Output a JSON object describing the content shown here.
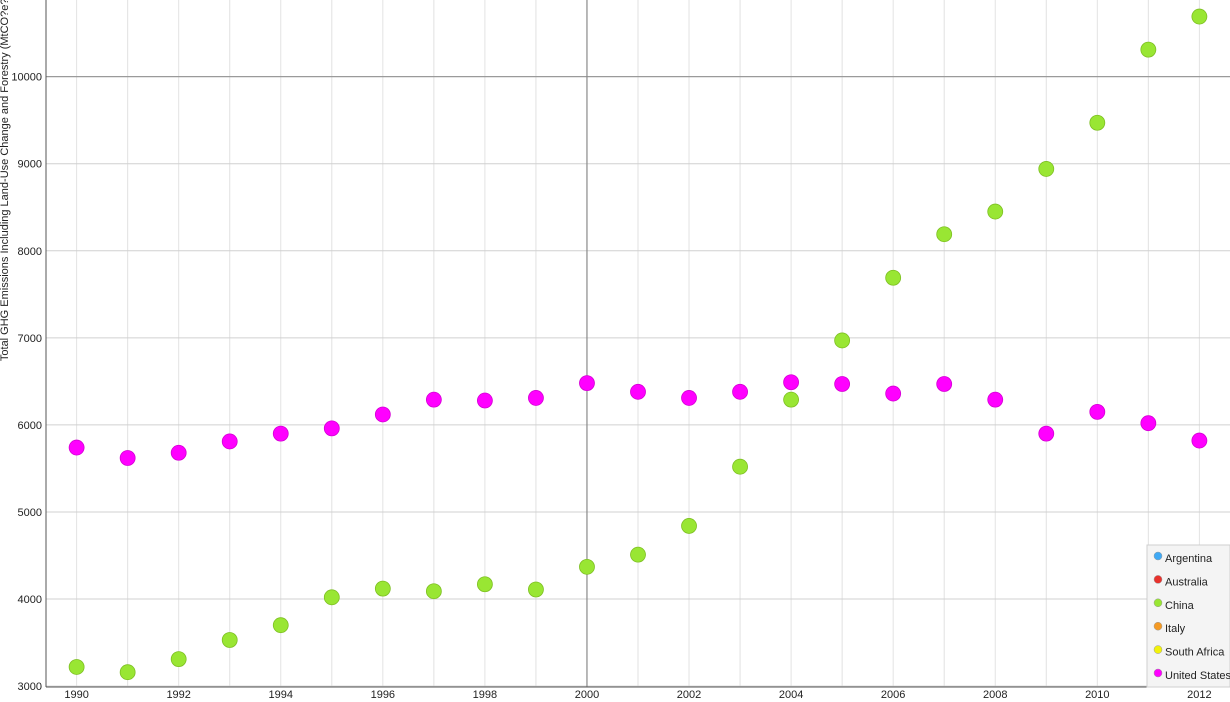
{
  "chart_data": {
    "type": "scatter",
    "title": "",
    "xlabel": "",
    "ylabel": "Total GHG Emissions Including Land-Use Change and Forestry (MtCO?e?)",
    "xlim": [
      1989.4,
      2012.6
    ],
    "ylim": [
      2990,
      10880
    ],
    "x_ticks": [
      1990,
      1992,
      1994,
      1996,
      1998,
      2000,
      2002,
      2004,
      2006,
      2008,
      2010,
      2012
    ],
    "y_ticks": [
      3000,
      4000,
      5000,
      6000,
      7000,
      8000,
      9000,
      10000
    ],
    "grid": true,
    "legend_position": "bottom-right",
    "x": [
      1990,
      1991,
      1992,
      1993,
      1994,
      1995,
      1996,
      1997,
      1998,
      1999,
      2000,
      2001,
      2002,
      2003,
      2004,
      2005,
      2006,
      2007,
      2008,
      2009,
      2010,
      2011,
      2012
    ],
    "series": [
      {
        "name": "Argentina",
        "color": "#3fa9f5",
        "values": []
      },
      {
        "name": "Australia",
        "color": "#e8322c",
        "values": []
      },
      {
        "name": "China",
        "color": "#99e633",
        "values": [
          3220,
          3160,
          3310,
          3530,
          3700,
          4020,
          4120,
          4090,
          4170,
          4110,
          4370,
          4510,
          4840,
          5520,
          6290,
          6970,
          7690,
          8190,
          8450,
          8940,
          9470,
          10310,
          10690
        ]
      },
      {
        "name": "Italy",
        "color": "#f59a23",
        "values": []
      },
      {
        "name": "South Africa",
        "color": "#f2f20a",
        "values": []
      },
      {
        "name": "United States",
        "color": "#ff00ff",
        "values": [
          5740,
          5620,
          5680,
          5810,
          5900,
          5960,
          6120,
          6290,
          6280,
          6310,
          6480,
          6380,
          6310,
          6380,
          6490,
          6470,
          6360,
          6470,
          6290,
          5900,
          6150,
          6020,
          5820
        ]
      }
    ]
  }
}
